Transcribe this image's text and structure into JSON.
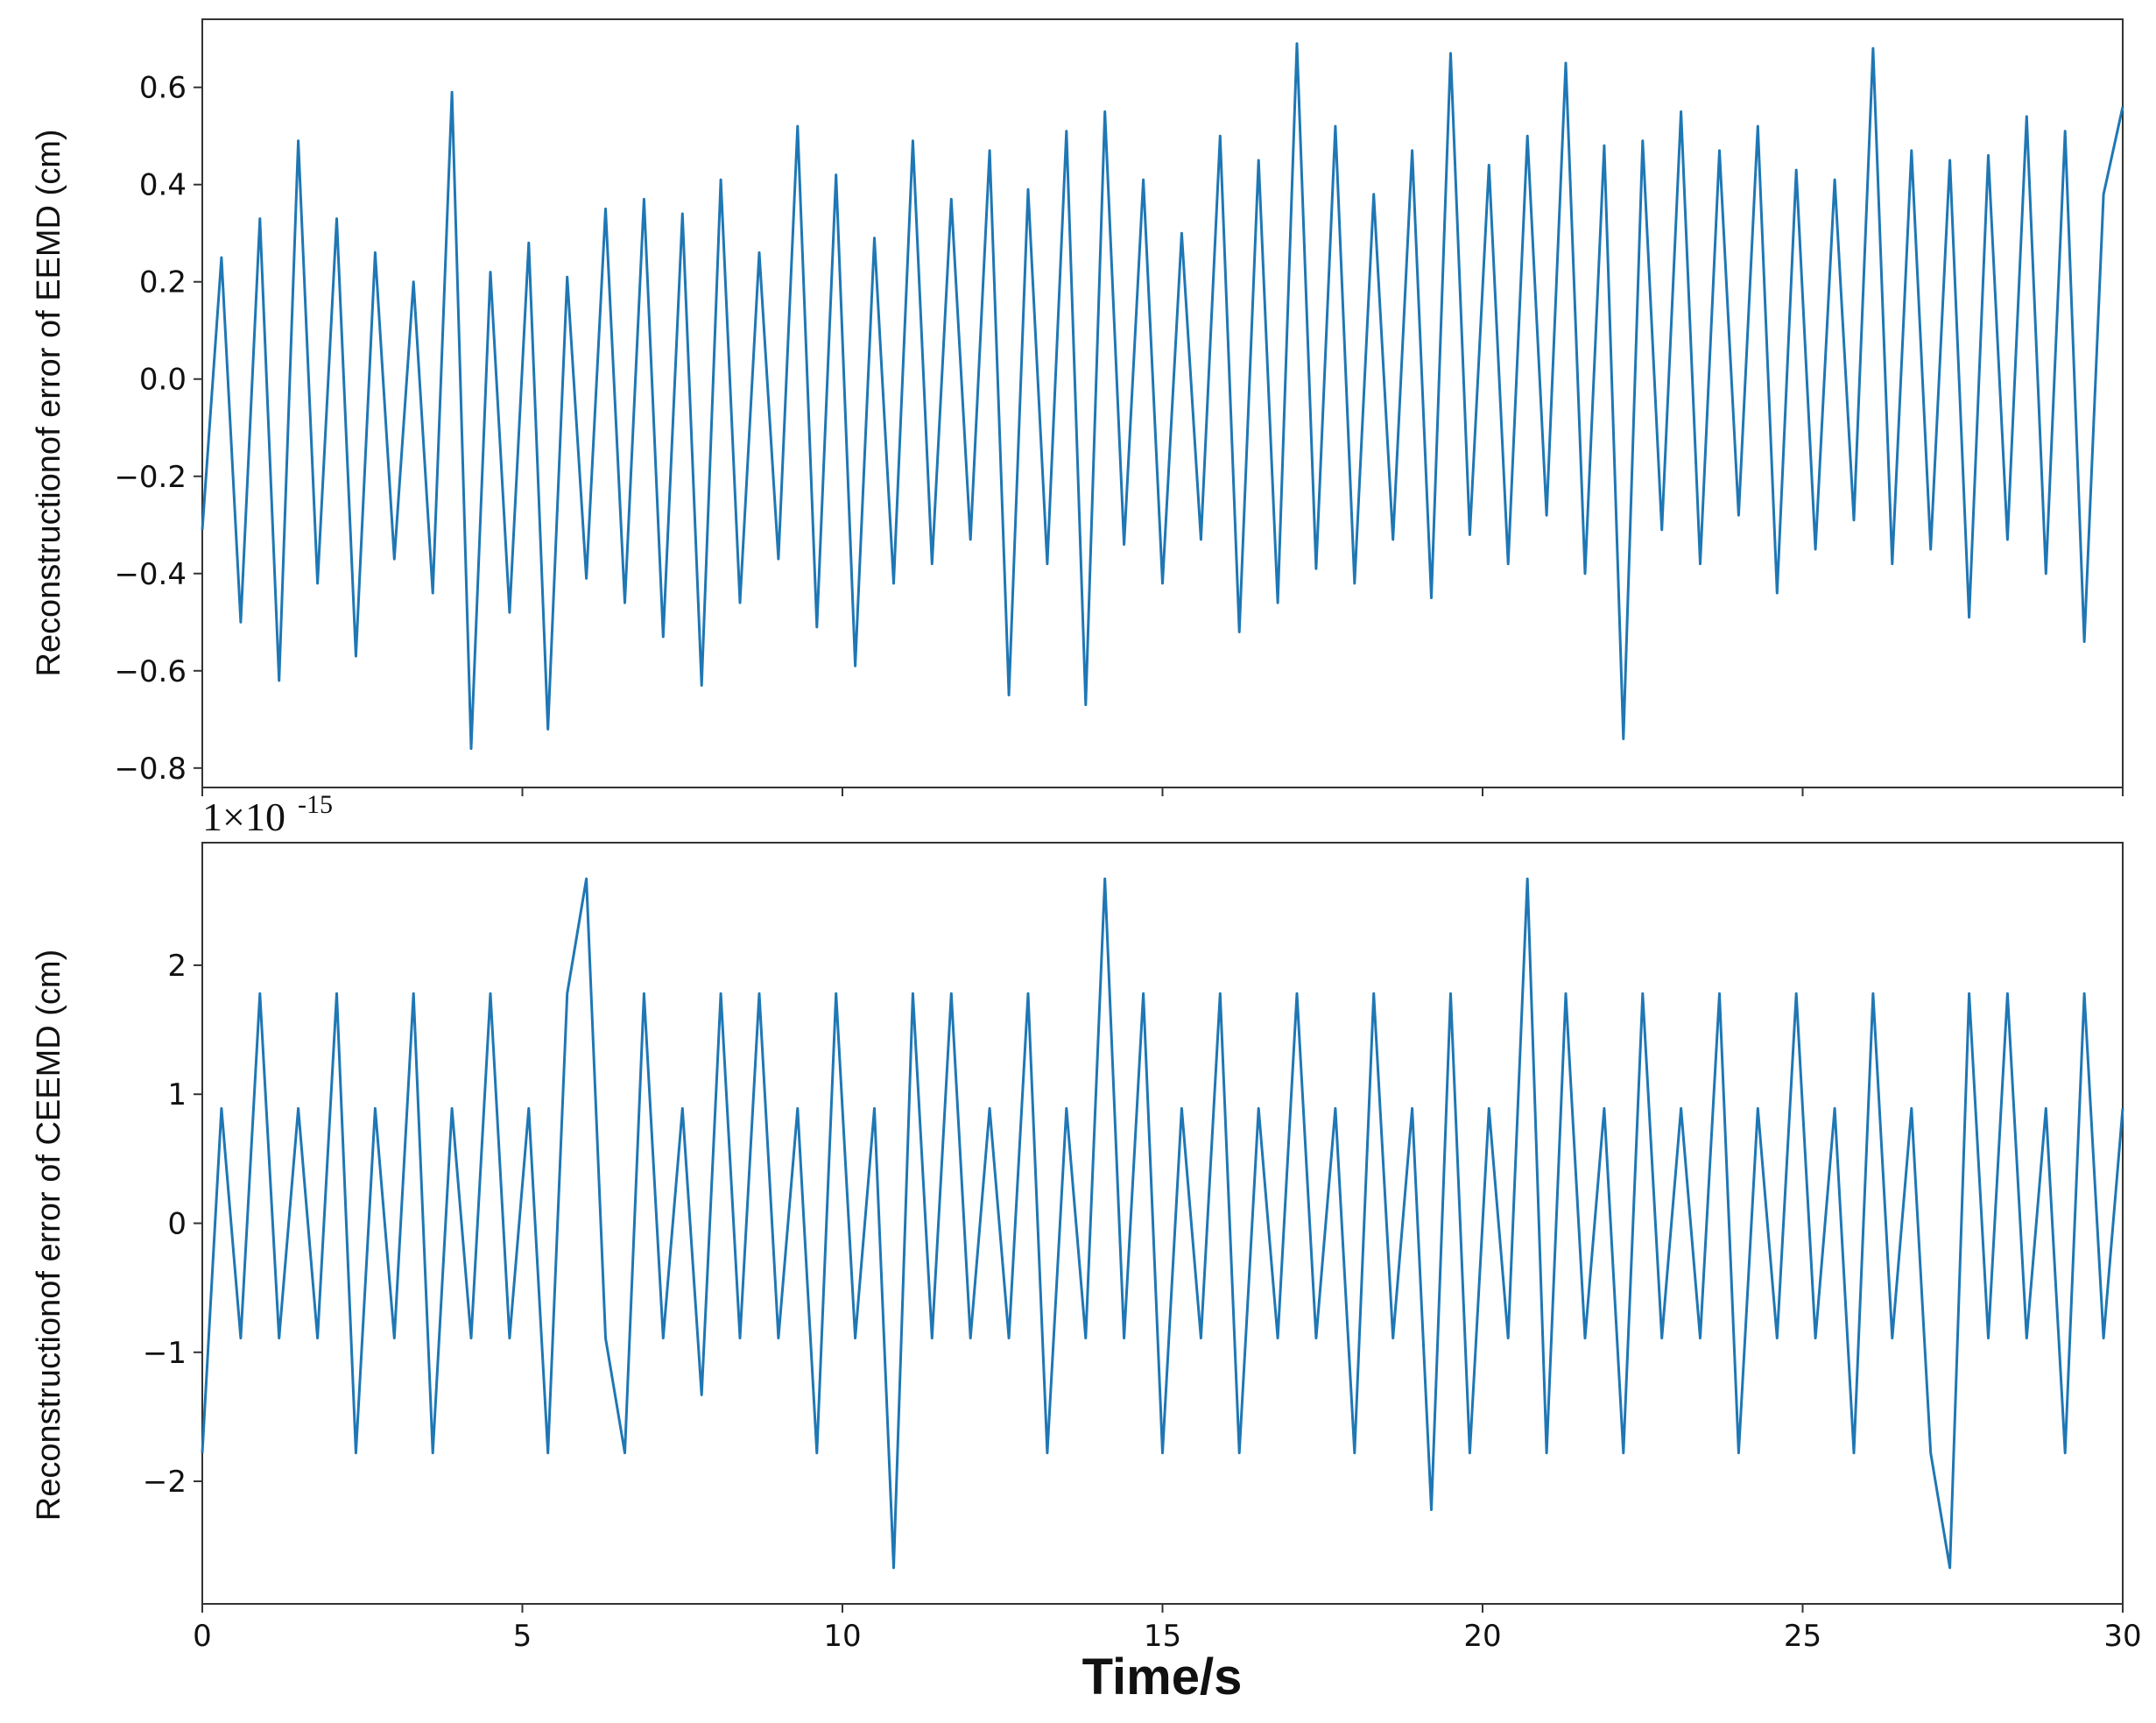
{
  "chart_data": [
    {
      "type": "line",
      "panel": "top",
      "ylabel": "Reconstructionof error of EEMD (cm)",
      "xlabel": "",
      "xlim": [
        0,
        30
      ],
      "ylim": [
        -0.84,
        0.74
      ],
      "yticks": [
        -0.8,
        -0.6,
        -0.4,
        -0.2,
        0.0,
        0.2,
        0.4,
        0.6
      ],
      "ytick_labels": [
        "−0.8",
        "−0.6",
        "−0.4",
        "−0.2",
        "0.0",
        "0.2",
        "0.4",
        "0.6"
      ],
      "xticks": [
        0,
        5,
        10,
        15,
        20,
        25,
        30
      ],
      "xtick_labels_visible": false,
      "color": "#1f77b4",
      "grid": false,
      "series": [
        {
          "x": [
            0,
            0.3,
            0.6,
            0.9,
            1.2,
            1.5,
            1.8,
            2.1,
            2.4,
            2.7,
            3.0,
            3.3,
            3.6,
            3.9,
            4.2,
            4.5,
            4.8,
            5.1,
            5.4,
            5.7,
            6.0,
            6.3,
            6.6,
            6.9,
            7.2,
            7.5,
            7.8,
            8.1,
            8.4,
            8.7,
            9.0,
            9.3,
            9.6,
            9.9,
            10.2,
            10.5,
            10.8,
            11.1,
            11.4,
            11.7,
            12.0,
            12.3,
            12.6,
            12.9,
            13.2,
            13.5,
            13.8,
            14.1,
            14.4,
            14.7,
            15.0,
            15.3,
            15.6,
            15.9,
            16.2,
            16.5,
            16.8,
            17.1,
            17.4,
            17.7,
            18.0,
            18.3,
            18.6,
            18.9,
            19.2,
            19.5,
            19.8,
            20.1,
            20.4,
            20.7,
            21.0,
            21.3,
            21.6,
            21.9,
            22.2,
            22.5,
            22.8,
            23.1,
            23.4,
            23.7,
            24.0,
            24.3,
            24.6,
            24.9,
            25.2,
            25.5,
            25.8,
            26.1,
            26.4,
            26.7,
            27.0,
            27.3,
            27.6,
            27.9,
            28.2,
            28.5,
            28.8,
            29.1,
            29.4,
            29.7,
            30.0
          ],
          "y": [
            -0.31,
            0.25,
            -0.5,
            0.33,
            -0.62,
            0.49,
            -0.42,
            0.33,
            -0.57,
            0.26,
            -0.37,
            0.2,
            -0.44,
            0.59,
            -0.76,
            0.22,
            -0.48,
            0.28,
            -0.72,
            0.21,
            -0.41,
            0.35,
            -0.46,
            0.37,
            -0.53,
            0.34,
            -0.63,
            0.41,
            -0.46,
            0.26,
            -0.37,
            0.52,
            -0.51,
            0.42,
            -0.59,
            0.29,
            -0.42,
            0.49,
            -0.38,
            0.37,
            -0.33,
            0.47,
            -0.65,
            0.39,
            -0.38,
            0.51,
            -0.67,
            0.55,
            -0.34,
            0.41,
            -0.42,
            0.3,
            -0.33,
            0.5,
            -0.52,
            0.45,
            -0.46,
            0.69,
            -0.39,
            0.52,
            -0.42,
            0.38,
            -0.33,
            0.47,
            -0.45,
            0.67,
            -0.32,
            0.44,
            -0.38,
            0.5,
            -0.28,
            0.65,
            -0.4,
            0.48,
            -0.74,
            0.49,
            -0.31,
            0.55,
            -0.38,
            0.47,
            -0.28,
            0.52,
            -0.44,
            0.43,
            -0.35,
            0.41,
            -0.29,
            0.68,
            -0.38,
            0.47,
            -0.35,
            0.45,
            -0.49,
            0.46,
            -0.33,
            0.54,
            -0.4,
            0.51,
            -0.54,
            0.38,
            0.56
          ]
        }
      ]
    },
    {
      "type": "line",
      "panel": "bottom",
      "ylabel": "Reconstructionof error of CEEMD (cm)",
      "xlabel": "Time/s",
      "offset_text": "1×10",
      "offset_exponent": "-15",
      "xlim": [
        0,
        30
      ],
      "ylim": [
        -2.95,
        2.95
      ],
      "yticks": [
        -2,
        -1,
        0,
        1,
        2
      ],
      "ytick_labels": [
        "−2",
        "−1",
        "0",
        "1",
        "2"
      ],
      "xticks": [
        0,
        5,
        10,
        15,
        20,
        25,
        30
      ],
      "xtick_labels": [
        "0",
        "5",
        "10",
        "15",
        "20",
        "25",
        "30"
      ],
      "color": "#1f77b4",
      "grid": false,
      "series": [
        {
          "x": [
            0,
            0.3,
            0.6,
            0.9,
            1.2,
            1.5,
            1.8,
            2.1,
            2.4,
            2.7,
            3.0,
            3.3,
            3.6,
            3.9,
            4.2,
            4.5,
            4.8,
            5.1,
            5.4,
            5.7,
            6.0,
            6.3,
            6.6,
            6.9,
            7.2,
            7.5,
            7.8,
            8.1,
            8.4,
            8.7,
            9.0,
            9.3,
            9.6,
            9.9,
            10.2,
            10.5,
            10.8,
            11.1,
            11.4,
            11.7,
            12.0,
            12.3,
            12.6,
            12.9,
            13.2,
            13.5,
            13.8,
            14.1,
            14.4,
            14.7,
            15.0,
            15.3,
            15.6,
            15.9,
            16.2,
            16.5,
            16.8,
            17.1,
            17.4,
            17.7,
            18.0,
            18.3,
            18.6,
            18.9,
            19.2,
            19.5,
            19.8,
            20.1,
            20.4,
            20.7,
            21.0,
            21.3,
            21.6,
            21.9,
            22.2,
            22.5,
            22.8,
            23.1,
            23.4,
            23.7,
            24.0,
            24.3,
            24.6,
            24.9,
            25.2,
            25.5,
            25.8,
            26.1,
            26.4,
            26.7,
            27.0,
            27.3,
            27.6,
            27.9,
            28.2,
            28.5,
            28.8,
            29.1,
            29.4,
            29.7,
            30.0
          ],
          "y": [
            -1.78,
            0.89,
            -0.89,
            1.78,
            -0.89,
            0.89,
            -0.89,
            1.78,
            -1.78,
            0.89,
            -0.89,
            1.78,
            -1.78,
            0.89,
            -0.89,
            1.78,
            -0.89,
            0.89,
            -1.78,
            1.78,
            2.67,
            -0.89,
            -1.78,
            1.78,
            -0.89,
            0.89,
            -1.33,
            1.78,
            -0.89,
            1.78,
            -0.89,
            0.89,
            -1.78,
            1.78,
            -0.89,
            0.89,
            -2.67,
            1.78,
            -0.89,
            1.78,
            -0.89,
            0.89,
            -0.89,
            1.78,
            -1.78,
            0.89,
            -0.89,
            2.67,
            -0.89,
            1.78,
            -1.78,
            0.89,
            -0.89,
            1.78,
            -1.78,
            0.89,
            -0.89,
            1.78,
            -0.89,
            0.89,
            -1.78,
            1.78,
            -0.89,
            0.89,
            -2.22,
            1.78,
            -1.78,
            0.89,
            -0.89,
            2.67,
            -1.78,
            1.78,
            -0.89,
            0.89,
            -1.78,
            1.78,
            -0.89,
            0.89,
            -0.89,
            1.78,
            -1.78,
            0.89,
            -0.89,
            1.78,
            -0.89,
            0.89,
            -1.78,
            1.78,
            -0.89,
            0.89,
            -1.78,
            -2.67,
            1.78,
            -0.89,
            1.78,
            -0.89,
            0.89,
            -1.78,
            1.78,
            -0.89,
            0.89
          ]
        }
      ]
    }
  ]
}
